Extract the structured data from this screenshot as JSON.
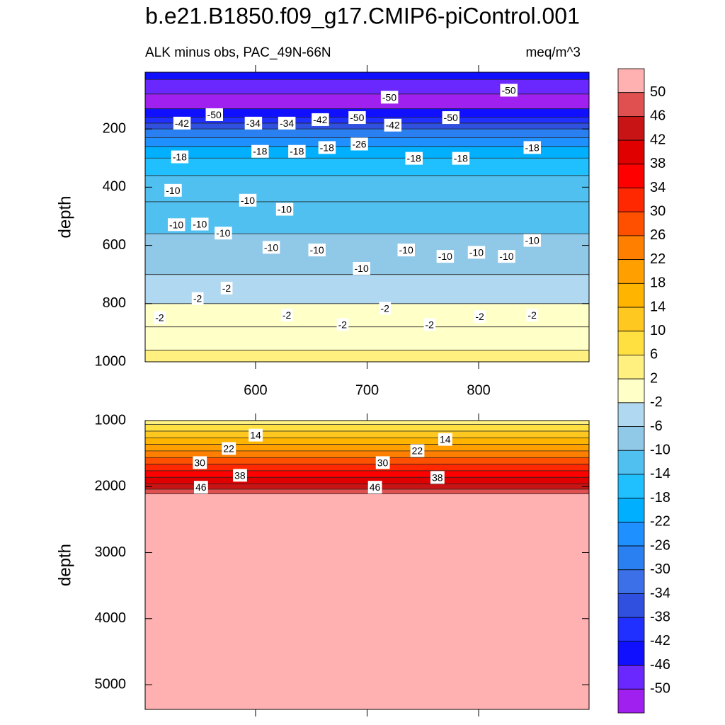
{
  "chart_data": [
    {
      "type": "contour",
      "title": "b.e21.B1850.f09_g17.CMIP6-piControl.001",
      "subtitle_left": "ALK minus obs, PAC_49N-66N",
      "subtitle_right": "meq/m^3",
      "ylabel": "depth",
      "xlim": [
        501,
        899
      ],
      "xticks": [
        600,
        700,
        800
      ],
      "xtick_labels": true,
      "ylim": [
        1000,
        5
      ],
      "yticks": [
        200,
        400,
        600,
        800,
        1000
      ],
      "depth_edges": [
        5,
        30,
        80,
        130,
        160,
        180,
        200,
        230,
        260,
        300,
        360,
        450,
        560,
        700,
        800,
        880,
        960,
        1000
      ],
      "values": [
        -44,
        -47,
        -51,
        -46,
        -40,
        -35,
        -30,
        -25,
        -21,
        -17,
        -13,
        -11,
        -8,
        -5,
        -1,
        1,
        3
      ],
      "contour_labels": [
        {
          "value": -50,
          "x": 720,
          "depth": 94
        },
        {
          "value": -50,
          "x": 827,
          "depth": 70
        },
        {
          "value": -42,
          "x": 534,
          "depth": 183
        },
        {
          "value": -50,
          "x": 563,
          "depth": 154
        },
        {
          "value": -34,
          "x": 598,
          "depth": 183
        },
        {
          "value": -34,
          "x": 628,
          "depth": 183
        },
        {
          "value": -42,
          "x": 658,
          "depth": 171
        },
        {
          "value": -50,
          "x": 691,
          "depth": 164
        },
        {
          "value": -42,
          "x": 723,
          "depth": 190
        },
        {
          "value": -50,
          "x": 775,
          "depth": 164
        },
        {
          "value": -18,
          "x": 532,
          "depth": 299
        },
        {
          "value": -18,
          "x": 604,
          "depth": 280
        },
        {
          "value": -18,
          "x": 637,
          "depth": 280
        },
        {
          "value": -18,
          "x": 664,
          "depth": 267
        },
        {
          "value": -26,
          "x": 693,
          "depth": 255
        },
        {
          "value": -18,
          "x": 742,
          "depth": 304
        },
        {
          "value": -18,
          "x": 784,
          "depth": 304
        },
        {
          "value": -18,
          "x": 848,
          "depth": 267
        },
        {
          "value": -10,
          "x": 526,
          "depth": 414
        },
        {
          "value": -10,
          "x": 593,
          "depth": 448
        },
        {
          "value": -10,
          "x": 626,
          "depth": 479
        },
        {
          "value": -10,
          "x": 529,
          "depth": 532
        },
        {
          "value": -10,
          "x": 550,
          "depth": 530
        },
        {
          "value": -10,
          "x": 571,
          "depth": 561
        },
        {
          "value": -10,
          "x": 614,
          "depth": 610
        },
        {
          "value": -10,
          "x": 655,
          "depth": 619
        },
        {
          "value": -10,
          "x": 695,
          "depth": 682
        },
        {
          "value": -10,
          "x": 735,
          "depth": 619
        },
        {
          "value": -10,
          "x": 770,
          "depth": 641
        },
        {
          "value": -10,
          "x": 798,
          "depth": 627
        },
        {
          "value": -10,
          "x": 825,
          "depth": 641
        },
        {
          "value": -10,
          "x": 848,
          "depth": 586
        },
        {
          "value": -2,
          "x": 514,
          "depth": 851
        },
        {
          "value": -2,
          "x": 548,
          "depth": 786
        },
        {
          "value": -2,
          "x": 574,
          "depth": 750
        },
        {
          "value": -2,
          "x": 628,
          "depth": 843
        },
        {
          "value": -2,
          "x": 678,
          "depth": 875
        },
        {
          "value": -2,
          "x": 716,
          "depth": 819
        },
        {
          "value": -2,
          "x": 756,
          "depth": 875
        },
        {
          "value": -2,
          "x": 801,
          "depth": 848
        },
        {
          "value": -2,
          "x": 848,
          "depth": 843
        }
      ],
      "levels": [
        50,
        46,
        42,
        38,
        34,
        30,
        26,
        22,
        18,
        14,
        10,
        6,
        2,
        -2,
        -6,
        -10,
        -14,
        -18,
        -22,
        -26,
        -30,
        -34,
        -38,
        -42,
        -46,
        -50
      ],
      "colors": [
        "#ffb0b0",
        "#e05050",
        "#c81414",
        "#e00000",
        "#ff0000",
        "#ff2800",
        "#ff5000",
        "#ff8000",
        "#ffa000",
        "#ffb400",
        "#ffc820",
        "#ffe040",
        "#fff080",
        "#ffffc8",
        "#b0d8f0",
        "#90c8e8",
        "#50c0f0",
        "#20c0ff",
        "#00b0ff",
        "#1e90ff",
        "#2a80f0",
        "#3c70e8",
        "#3050e0",
        "#2030ff",
        "#1010ff",
        "#6a28ff",
        "#a020f0"
      ]
    },
    {
      "type": "contour",
      "ylabel": "depth",
      "xlim": [
        501,
        899
      ],
      "xticks": [
        600,
        700,
        800
      ],
      "xtick_labels": false,
      "ylim": [
        5375,
        1000
      ],
      "yticks": [
        1000,
        2000,
        3000,
        4000,
        5000
      ],
      "depth_edges": [
        1000,
        1060,
        1160,
        1260,
        1360,
        1460,
        1560,
        1660,
        1760,
        1860,
        1960,
        2040,
        2110,
        5375
      ],
      "values": [
        5,
        8,
        12,
        16,
        20,
        24,
        28,
        32,
        36,
        40,
        44,
        48,
        55
      ],
      "contour_labels": [
        {
          "value": 14,
          "x": 600,
          "depth": 1235
        },
        {
          "value": 14,
          "x": 770,
          "depth": 1299
        },
        {
          "value": 22,
          "x": 576,
          "depth": 1437
        },
        {
          "value": 22,
          "x": 745,
          "depth": 1470
        },
        {
          "value": 30,
          "x": 550,
          "depth": 1651
        },
        {
          "value": 30,
          "x": 714,
          "depth": 1651
        },
        {
          "value": 38,
          "x": 586,
          "depth": 1843
        },
        {
          "value": 38,
          "x": 763,
          "depth": 1875
        },
        {
          "value": 46,
          "x": 551,
          "depth": 2024
        },
        {
          "value": 46,
          "x": 707,
          "depth": 2024
        }
      ]
    }
  ]
}
